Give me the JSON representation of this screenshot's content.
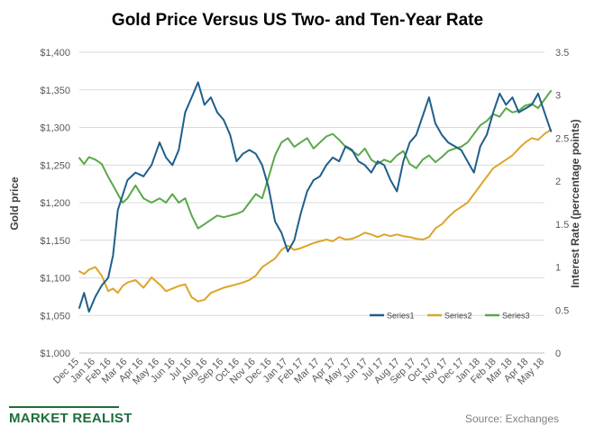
{
  "chart_data": {
    "type": "line",
    "title": "Gold Price Versus US Two- and Ten-Year Rate",
    "ylabel_left": "Gold price",
    "ylabel_right": "Interest Rate (percentage points)",
    "y_left_range": [
      1000,
      1400
    ],
    "y_left_ticks": [
      "$1,000",
      "$1,050",
      "$1,100",
      "$1,150",
      "$1,200",
      "$1,250",
      "$1,300",
      "$1,350",
      "$1,400"
    ],
    "y_right_range": [
      0,
      3.5
    ],
    "y_right_ticks": [
      "0",
      "0.5",
      "1",
      "1.5",
      "2",
      "2.5",
      "3",
      "3.5"
    ],
    "x_ticks": [
      "Dec 15",
      "Jan 16",
      "Feb 16",
      "Mar 16",
      "Apr 16",
      "May 16",
      "Jun 16",
      "Jul 16",
      "Aug 16",
      "Sep 16",
      "Oct 16",
      "Nov 16",
      "Dec 16",
      "Jan 17",
      "Feb 17",
      "Mar 17",
      "Apr 17",
      "May 17",
      "Jun 17",
      "Jul 17",
      "Aug 17",
      "Sep 17",
      "Oct 17",
      "Nov 17",
      "Dec 17",
      "Jan 18",
      "Feb 18",
      "Mar 18",
      "Apr 18",
      "May 18"
    ],
    "grid": "horizontal",
    "legend_position": "bottom-right",
    "series": [
      {
        "name": "Series1",
        "axis": "left",
        "color": "#1f5f8b",
        "x": [
          0,
          0.3,
          0.6,
          1.0,
          1.4,
          1.8,
          2.1,
          2.4,
          2.7,
          3.0,
          3.5,
          4.0,
          4.5,
          5.0,
          5.4,
          5.8,
          6.2,
          6.6,
          7.0,
          7.4,
          7.8,
          8.2,
          8.6,
          9.0,
          9.4,
          9.8,
          10.2,
          10.6,
          11.0,
          11.4,
          11.8,
          12.2,
          12.6,
          13.0,
          13.4,
          13.8,
          14.2,
          14.6,
          15.0,
          15.4,
          15.8,
          16.2,
          16.6,
          17.0,
          17.4,
          17.8,
          18.2,
          18.6,
          19.0,
          19.4,
          19.8,
          20.2,
          20.6,
          21.0,
          21.4,
          21.8,
          22.2,
          22.6,
          23.0,
          23.4,
          23.8,
          24.2,
          24.6,
          25.0,
          25.4,
          25.8,
          26.2,
          26.6,
          27.0,
          27.4,
          27.8,
          28.2,
          28.6,
          29.0,
          29.4
        ],
        "values": [
          1060,
          1080,
          1055,
          1075,
          1090,
          1100,
          1130,
          1190,
          1210,
          1230,
          1240,
          1235,
          1250,
          1280,
          1260,
          1250,
          1270,
          1320,
          1340,
          1360,
          1330,
          1340,
          1320,
          1310,
          1290,
          1255,
          1265,
          1270,
          1265,
          1250,
          1220,
          1175,
          1160,
          1135,
          1150,
          1185,
          1215,
          1230,
          1235,
          1250,
          1260,
          1255,
          1275,
          1270,
          1255,
          1250,
          1240,
          1255,
          1250,
          1230,
          1215,
          1255,
          1280,
          1290,
          1315,
          1340,
          1305,
          1290,
          1280,
          1275,
          1270,
          1255,
          1240,
          1275,
          1290,
          1320,
          1345,
          1330,
          1340,
          1320,
          1325,
          1330,
          1345,
          1320,
          1295
        ]
      },
      {
        "name": "Series2",
        "axis": "right",
        "color": "#dda52a",
        "x": [
          0,
          0.3,
          0.6,
          1.0,
          1.4,
          1.8,
          2.1,
          2.4,
          2.7,
          3.0,
          3.5,
          4.0,
          4.5,
          5.0,
          5.4,
          5.8,
          6.2,
          6.6,
          7.0,
          7.4,
          7.8,
          8.2,
          8.6,
          9.0,
          9.4,
          9.8,
          10.2,
          10.6,
          11.0,
          11.4,
          11.8,
          12.2,
          12.6,
          13.0,
          13.4,
          13.8,
          14.2,
          14.6,
          15.0,
          15.4,
          15.8,
          16.2,
          16.6,
          17.0,
          17.4,
          17.8,
          18.2,
          18.6,
          19.0,
          19.4,
          19.8,
          20.2,
          20.6,
          21.0,
          21.4,
          21.8,
          22.2,
          22.6,
          23.0,
          23.4,
          23.8,
          24.2,
          24.6,
          25.0,
          25.4,
          25.8,
          26.2,
          26.6,
          27.0,
          27.4,
          27.8,
          28.2,
          28.6,
          29.0,
          29.4
        ],
        "values": [
          0.95,
          0.92,
          0.97,
          1.0,
          0.9,
          0.72,
          0.75,
          0.7,
          0.78,
          0.82,
          0.85,
          0.76,
          0.88,
          0.8,
          0.72,
          0.75,
          0.78,
          0.8,
          0.65,
          0.6,
          0.62,
          0.7,
          0.73,
          0.76,
          0.78,
          0.8,
          0.82,
          0.85,
          0.9,
          1.0,
          1.05,
          1.1,
          1.2,
          1.25,
          1.2,
          1.22,
          1.25,
          1.28,
          1.3,
          1.32,
          1.3,
          1.35,
          1.32,
          1.33,
          1.36,
          1.4,
          1.38,
          1.35,
          1.38,
          1.36,
          1.38,
          1.36,
          1.35,
          1.33,
          1.32,
          1.35,
          1.45,
          1.5,
          1.58,
          1.65,
          1.7,
          1.75,
          1.85,
          1.95,
          2.05,
          2.15,
          2.2,
          2.25,
          2.3,
          2.38,
          2.45,
          2.5,
          2.48,
          2.55,
          2.6
        ]
      },
      {
        "name": "Series3",
        "axis": "right",
        "color": "#5aa84a",
        "x": [
          0,
          0.3,
          0.6,
          1.0,
          1.4,
          1.8,
          2.1,
          2.4,
          2.7,
          3.0,
          3.5,
          4.0,
          4.5,
          5.0,
          5.4,
          5.8,
          6.2,
          6.6,
          7.0,
          7.4,
          7.8,
          8.2,
          8.6,
          9.0,
          9.4,
          9.8,
          10.2,
          10.6,
          11.0,
          11.4,
          11.8,
          12.2,
          12.6,
          13.0,
          13.4,
          13.8,
          14.2,
          14.6,
          15.0,
          15.4,
          15.8,
          16.2,
          16.6,
          17.0,
          17.4,
          17.8,
          18.2,
          18.6,
          19.0,
          19.4,
          19.8,
          20.2,
          20.6,
          21.0,
          21.4,
          21.8,
          22.2,
          22.6,
          23.0,
          23.4,
          23.8,
          24.2,
          24.6,
          25.0,
          25.4,
          25.8,
          26.2,
          26.6,
          27.0,
          27.4,
          27.8,
          28.2,
          28.6,
          29.0,
          29.4
        ],
        "values": [
          2.27,
          2.2,
          2.28,
          2.25,
          2.2,
          2.05,
          1.95,
          1.85,
          1.75,
          1.8,
          1.95,
          1.8,
          1.75,
          1.8,
          1.75,
          1.85,
          1.75,
          1.8,
          1.6,
          1.45,
          1.5,
          1.55,
          1.6,
          1.58,
          1.6,
          1.62,
          1.65,
          1.75,
          1.85,
          1.8,
          2.05,
          2.3,
          2.45,
          2.5,
          2.4,
          2.45,
          2.5,
          2.38,
          2.45,
          2.52,
          2.55,
          2.48,
          2.4,
          2.35,
          2.3,
          2.38,
          2.25,
          2.2,
          2.25,
          2.22,
          2.3,
          2.35,
          2.2,
          2.15,
          2.25,
          2.3,
          2.22,
          2.28,
          2.35,
          2.38,
          2.4,
          2.45,
          2.55,
          2.65,
          2.7,
          2.78,
          2.75,
          2.85,
          2.8,
          2.82,
          2.88,
          2.9,
          2.85,
          2.95,
          3.05
        ]
      }
    ]
  },
  "branding": {
    "logo_text": "MARKET REALIST",
    "source": "Source: Exchanges"
  }
}
